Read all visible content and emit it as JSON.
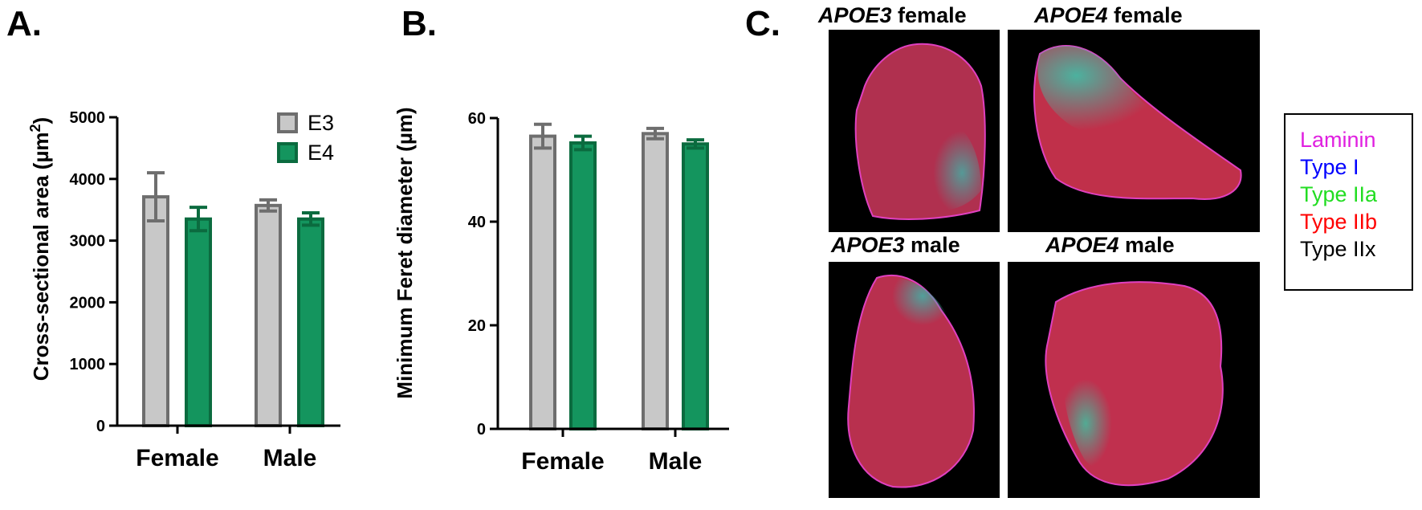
{
  "panels": {
    "a": "A.",
    "b": "B.",
    "c": "C."
  },
  "chart_data": [
    {
      "type": "bar",
      "panel": "A.",
      "categories": [
        "Female",
        "Male"
      ],
      "series": [
        {
          "name": "E3",
          "values": [
            3710,
            3570
          ],
          "error": [
            390,
            90
          ],
          "color": "#c8c8c8",
          "edge": "#6e6e6e"
        },
        {
          "name": "E4",
          "values": [
            3350,
            3350
          ],
          "error": [
            190,
            100
          ],
          "color": "#14955e",
          "edge": "#0b6b3f"
        }
      ],
      "ylabel": "Cross-sectional area (µm²)",
      "ylabel_main": "Cross-sectional area (µm",
      "ylabel_sup": "2",
      "ylabel_end": ")",
      "ylim": [
        0,
        5000
      ],
      "yticks": [
        0,
        1000,
        2000,
        3000,
        4000,
        5000
      ],
      "ytick_labels": [
        "0",
        "1000",
        "2000",
        "3000",
        "4000",
        "5000"
      ],
      "legend": "top-right",
      "grid": false
    },
    {
      "type": "bar",
      "panel": "B.",
      "categories": [
        "Female",
        "Male"
      ],
      "series": [
        {
          "name": "E3",
          "values": [
            56.5,
            57.0
          ],
          "error": [
            2.3,
            1.0
          ],
          "color": "#c8c8c8",
          "edge": "#6e6e6e"
        },
        {
          "name": "E4",
          "values": [
            55.2,
            55.0
          ],
          "error": [
            1.3,
            0.8
          ],
          "color": "#14955e",
          "edge": "#0b6b3f"
        }
      ],
      "ylabel": "Minimum Feret diameter (µm)",
      "ylim": [
        0,
        60
      ],
      "yticks": [
        0,
        20,
        40,
        60
      ],
      "ytick_labels": [
        "0",
        "20",
        "40",
        "60"
      ],
      "legend": "none",
      "grid": false
    }
  ],
  "images": {
    "titles": [
      {
        "gene": "APOE3",
        "sex": " female"
      },
      {
        "gene": "APOE4",
        "sex": " female"
      },
      {
        "gene": "APOE3",
        "sex": " male"
      },
      {
        "gene": "APOE4",
        "sex": " male"
      }
    ]
  },
  "stain_legend": [
    {
      "label": "Laminin",
      "color": "#e020e0"
    },
    {
      "label": "Type I",
      "color": "#0000ff"
    },
    {
      "label": "Type IIa",
      "color": "#22dd22"
    },
    {
      "label": "Type IIb",
      "color": "#ff0000"
    },
    {
      "label": "Type IIx",
      "color": "#000000"
    }
  ]
}
